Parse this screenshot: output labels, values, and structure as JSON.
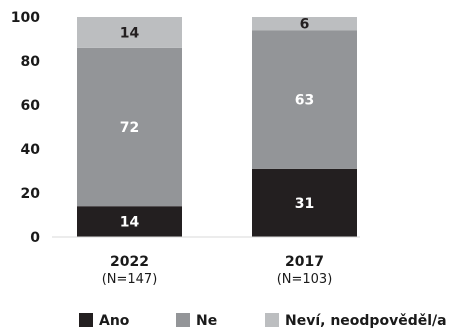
{
  "chart_data": {
    "type": "bar",
    "stacked": true,
    "categories": [
      "2022",
      "2017"
    ],
    "category_sublabels": [
      "(N=147)",
      "(N=103)"
    ],
    "ylim": [
      0,
      100
    ],
    "yticks": [
      0,
      20,
      40,
      60,
      80,
      100
    ],
    "grid": false,
    "legend_position": "bottom",
    "series": [
      {
        "name": "Ano",
        "values": [
          14,
          31
        ],
        "color": "#231f20",
        "label_color": "#ffffff"
      },
      {
        "name": "Ne",
        "values": [
          72,
          63
        ],
        "color": "#939598",
        "label_color": "#ffffff"
      },
      {
        "name": "Neví, neodpověděl/a",
        "values": [
          14,
          6
        ],
        "color": "#bcbec0",
        "label_color": "#231f20"
      }
    ]
  }
}
